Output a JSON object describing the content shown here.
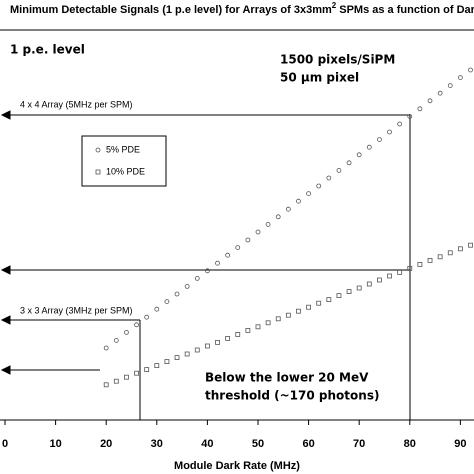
{
  "chart_data": {
    "type": "scatter",
    "title": "Minimum Detectable Signals (1 p.e level) for Arrays of 3x3mm",
    "title_superscript": "2",
    "title_end": " SPMs as a function of Dark R",
    "x_label": "Module Dark Rate (MHz)",
    "xlim": [
      0,
      92
    ],
    "xticks": [
      0,
      10,
      20,
      30,
      40,
      50,
      60,
      70,
      80,
      90
    ],
    "ylim": [
      0,
      100
    ],
    "x": [
      20,
      22,
      24,
      26,
      28,
      30,
      32,
      34,
      36,
      38,
      40,
      42,
      44,
      46,
      48,
      50,
      52,
      54,
      56,
      58,
      60,
      62,
      64,
      66,
      68,
      70,
      72,
      74,
      76,
      78,
      80,
      82,
      84,
      86,
      88,
      90,
      92
    ],
    "series": [
      {
        "name": "5% PDE",
        "color": "#555555",
        "marker": "circle",
        "values": [
          18,
          19.9,
          21.9,
          23.8,
          25.7,
          27.7,
          29.6,
          31.5,
          33.4,
          35.4,
          37.3,
          39.2,
          41.2,
          43.1,
          45,
          47,
          48.9,
          50.8,
          52.7,
          54.7,
          56.6,
          58.5,
          60.5,
          62.4,
          64.3,
          66.3,
          68.2,
          70.1,
          72,
          74,
          75.9,
          77.8,
          79.8,
          81.7,
          83.6,
          85.6,
          87.5
        ]
      },
      {
        "name": "10% PDE",
        "color": "#555555",
        "marker": "square",
        "values": [
          8.8,
          9.7,
          10.7,
          11.7,
          12.6,
          13.6,
          14.6,
          15.6,
          16.5,
          17.5,
          18.5,
          19.4,
          20.4,
          21.4,
          22.4,
          23.3,
          24.3,
          25.3,
          26.2,
          27.2,
          28.2,
          29.2,
          30.1,
          31.1,
          32.1,
          33,
          34,
          35,
          36,
          36.9,
          37.9,
          38.9,
          39.9,
          40.8,
          41.8,
          42.8,
          43.7
        ]
      }
    ],
    "annotations": [
      "1 p.e. level",
      "1500 pixels/SiPM",
      "50 µm pixel",
      "4 x 4 Array (5MHz per SPM)",
      "3 x 3 Array (3MHz per SPM)",
      "Below the lower 20 MeV",
      "threshold (~170 photons)"
    ]
  }
}
